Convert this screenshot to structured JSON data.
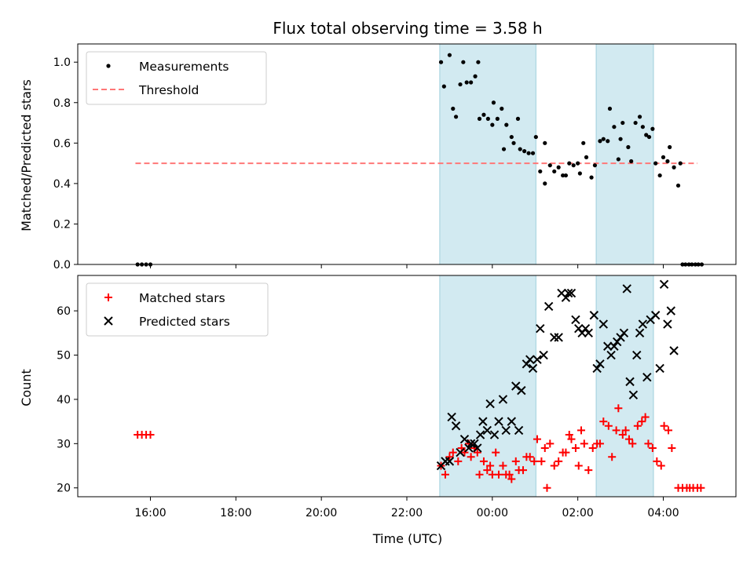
{
  "chart_data": [
    {
      "type": "scatter",
      "title": "Flux total observing time = 3.58 h",
      "xlabel": "",
      "ylabel": "Matched/Predicted stars",
      "x_unit": "hours after 00:00 UTC",
      "xlim": [
        -9.7,
        5.7
      ],
      "ylim": [
        0.0,
        1.09
      ],
      "yticks": [
        "0.0",
        "0.2",
        "0.4",
        "0.6",
        "0.8",
        "1.0"
      ],
      "shaded_intervals": [
        [
          -1.23,
          1.02
        ],
        [
          2.43,
          3.77
        ]
      ],
      "shade_color": "#add8e6",
      "legend": {
        "position": "top-left",
        "entries": [
          "Measurements",
          "Threshold"
        ]
      },
      "threshold": {
        "name": "Threshold",
        "y": 0.5,
        "x_range": [
          -8.35,
          4.8
        ],
        "color": "#ff7777",
        "style": "dashed"
      },
      "series": [
        {
          "name": "Measurements",
          "marker": "dot",
          "color": "#000000",
          "points": [
            [
              -8.3,
              0.0
            ],
            [
              -8.2,
              0.0
            ],
            [
              -8.1,
              0.0
            ],
            [
              -8.0,
              0.0
            ],
            [
              -1.2,
              1.0
            ],
            [
              -1.13,
              0.88
            ],
            [
              -1.0,
              1.035
            ],
            [
              -0.92,
              0.77
            ],
            [
              -0.85,
              0.73
            ],
            [
              -0.75,
              0.89
            ],
            [
              -0.68,
              1.0
            ],
            [
              -0.6,
              0.9
            ],
            [
              -0.5,
              0.9
            ],
            [
              -0.4,
              0.93
            ],
            [
              -0.33,
              1.0
            ],
            [
              -0.3,
              0.72
            ],
            [
              -0.2,
              0.74
            ],
            [
              -0.1,
              0.72
            ],
            [
              0.0,
              0.69
            ],
            [
              0.03,
              0.8
            ],
            [
              0.12,
              0.72
            ],
            [
              0.22,
              0.77
            ],
            [
              0.27,
              0.57
            ],
            [
              0.33,
              0.69
            ],
            [
              0.45,
              0.63
            ],
            [
              0.5,
              0.6
            ],
            [
              0.6,
              0.72
            ],
            [
              0.65,
              0.57
            ],
            [
              0.75,
              0.56
            ],
            [
              0.85,
              0.55
            ],
            [
              0.95,
              0.55
            ],
            [
              1.02,
              0.63
            ],
            [
              1.12,
              0.46
            ],
            [
              1.23,
              0.6
            ],
            [
              1.23,
              0.4
            ],
            [
              1.35,
              0.49
            ],
            [
              1.45,
              0.46
            ],
            [
              1.55,
              0.48
            ],
            [
              1.65,
              0.44
            ],
            [
              1.72,
              0.44
            ],
            [
              1.8,
              0.5
            ],
            [
              1.9,
              0.49
            ],
            [
              2.0,
              0.5
            ],
            [
              2.05,
              0.45
            ],
            [
              2.13,
              0.6
            ],
            [
              2.2,
              0.53
            ],
            [
              2.32,
              0.43
            ],
            [
              2.4,
              0.49
            ],
            [
              2.52,
              0.61
            ],
            [
              2.6,
              0.62
            ],
            [
              2.7,
              0.61
            ],
            [
              2.75,
              0.77
            ],
            [
              2.85,
              0.68
            ],
            [
              2.95,
              0.52
            ],
            [
              3.0,
              0.62
            ],
            [
              3.05,
              0.7
            ],
            [
              3.18,
              0.58
            ],
            [
              3.25,
              0.51
            ],
            [
              3.35,
              0.7
            ],
            [
              3.45,
              0.73
            ],
            [
              3.52,
              0.68
            ],
            [
              3.6,
              0.64
            ],
            [
              3.67,
              0.63
            ],
            [
              3.75,
              0.67
            ],
            [
              3.82,
              0.5
            ],
            [
              3.92,
              0.44
            ],
            [
              4.0,
              0.53
            ],
            [
              4.1,
              0.51
            ],
            [
              4.15,
              0.58
            ],
            [
              4.25,
              0.48
            ],
            [
              4.35,
              0.39
            ],
            [
              4.4,
              0.5
            ],
            [
              4.45,
              0.0
            ],
            [
              4.52,
              0.0
            ],
            [
              4.6,
              0.0
            ],
            [
              4.67,
              0.0
            ],
            [
              4.75,
              0.0
            ],
            [
              4.82,
              0.0
            ],
            [
              4.9,
              0.0
            ]
          ]
        }
      ]
    },
    {
      "type": "scatter",
      "title": "",
      "xlabel": "Time (UTC)",
      "ylabel": "Count",
      "x_unit": "hours after 00:00 UTC",
      "xlim": [
        -9.7,
        5.7
      ],
      "ylim": [
        18,
        68
      ],
      "yticks": [
        "20",
        "30",
        "40",
        "50",
        "60"
      ],
      "xticks": [
        {
          "value": -8,
          "label": "16:00"
        },
        {
          "value": -6,
          "label": "18:00"
        },
        {
          "value": -4,
          "label": "20:00"
        },
        {
          "value": -2,
          "label": "22:00"
        },
        {
          "value": 0,
          "label": "00:00"
        },
        {
          "value": 2,
          "label": "02:00"
        },
        {
          "value": 4,
          "label": "04:00"
        }
      ],
      "shaded_intervals": [
        [
          -1.23,
          1.02
        ],
        [
          2.43,
          3.77
        ]
      ],
      "shade_color": "#add8e6",
      "legend": {
        "position": "top-left",
        "entries": [
          "Matched stars",
          "Predicted stars"
        ]
      },
      "series": [
        {
          "name": "Matched stars",
          "marker": "plus",
          "color": "#ff0000",
          "points": [
            [
              -8.3,
              32
            ],
            [
              -8.2,
              32
            ],
            [
              -8.1,
              32
            ],
            [
              -8.0,
              32
            ],
            [
              -1.2,
              25
            ],
            [
              -1.1,
              23
            ],
            [
              -1.0,
              27
            ],
            [
              -0.92,
              28
            ],
            [
              -0.8,
              26
            ],
            [
              -0.72,
              29
            ],
            [
              -0.65,
              28
            ],
            [
              -0.55,
              30
            ],
            [
              -0.5,
              27
            ],
            [
              -0.42,
              29
            ],
            [
              -0.35,
              28
            ],
            [
              -0.3,
              23
            ],
            [
              -0.2,
              26
            ],
            [
              -0.12,
              24
            ],
            [
              -0.05,
              25
            ],
            [
              0.0,
              23
            ],
            [
              0.08,
              28
            ],
            [
              0.15,
              23
            ],
            [
              0.25,
              25
            ],
            [
              0.32,
              23
            ],
            [
              0.4,
              23
            ],
            [
              0.45,
              22
            ],
            [
              0.55,
              26
            ],
            [
              0.62,
              24
            ],
            [
              0.72,
              24
            ],
            [
              0.8,
              27
            ],
            [
              0.88,
              27
            ],
            [
              0.98,
              26
            ],
            [
              1.05,
              31
            ],
            [
              1.15,
              26
            ],
            [
              1.23,
              29
            ],
            [
              1.28,
              20
            ],
            [
              1.35,
              30
            ],
            [
              1.45,
              25
            ],
            [
              1.55,
              26
            ],
            [
              1.65,
              28
            ],
            [
              1.72,
              28
            ],
            [
              1.8,
              32
            ],
            [
              1.85,
              31
            ],
            [
              1.95,
              29
            ],
            [
              2.02,
              25
            ],
            [
              2.08,
              33
            ],
            [
              2.15,
              30
            ],
            [
              2.25,
              24
            ],
            [
              2.35,
              29
            ],
            [
              2.45,
              30
            ],
            [
              2.52,
              30
            ],
            [
              2.6,
              35
            ],
            [
              2.72,
              34
            ],
            [
              2.8,
              27
            ],
            [
              2.9,
              33
            ],
            [
              2.95,
              38
            ],
            [
              3.05,
              32
            ],
            [
              3.12,
              33
            ],
            [
              3.2,
              31
            ],
            [
              3.28,
              30
            ],
            [
              3.4,
              34
            ],
            [
              3.5,
              35
            ],
            [
              3.58,
              36
            ],
            [
              3.65,
              30
            ],
            [
              3.75,
              29
            ],
            [
              3.85,
              26
            ],
            [
              3.95,
              25
            ],
            [
              4.02,
              34
            ],
            [
              4.12,
              33
            ],
            [
              4.2,
              29
            ],
            [
              4.35,
              20
            ],
            [
              4.45,
              20
            ],
            [
              4.55,
              20
            ],
            [
              4.62,
              20
            ],
            [
              4.7,
              20
            ],
            [
              4.8,
              20
            ],
            [
              4.88,
              20
            ]
          ]
        },
        {
          "name": "Predicted stars",
          "marker": "x",
          "color": "#000000",
          "points": [
            [
              -1.2,
              25
            ],
            [
              -1.1,
              26
            ],
            [
              -1.0,
              26
            ],
            [
              -0.95,
              36
            ],
            [
              -0.85,
              34
            ],
            [
              -0.75,
              28
            ],
            [
              -0.65,
              31
            ],
            [
              -0.55,
              29
            ],
            [
              -0.5,
              30
            ],
            [
              -0.42,
              30
            ],
            [
              -0.35,
              29
            ],
            [
              -0.28,
              32
            ],
            [
              -0.22,
              35
            ],
            [
              -0.12,
              33
            ],
            [
              -0.05,
              39
            ],
            [
              0.05,
              32
            ],
            [
              0.15,
              35
            ],
            [
              0.25,
              40
            ],
            [
              0.32,
              33
            ],
            [
              0.45,
              35
            ],
            [
              0.55,
              43
            ],
            [
              0.62,
              33
            ],
            [
              0.68,
              42
            ],
            [
              0.8,
              48
            ],
            [
              0.88,
              49
            ],
            [
              0.95,
              47
            ],
            [
              1.05,
              49
            ],
            [
              1.12,
              56
            ],
            [
              1.2,
              50
            ],
            [
              1.32,
              61
            ],
            [
              1.45,
              54
            ],
            [
              1.55,
              54
            ],
            [
              1.62,
              64
            ],
            [
              1.72,
              63
            ],
            [
              1.78,
              64
            ],
            [
              1.85,
              64
            ],
            [
              1.95,
              58
            ],
            [
              2.02,
              56
            ],
            [
              2.1,
              55
            ],
            [
              2.18,
              56
            ],
            [
              2.25,
              55
            ],
            [
              2.38,
              59
            ],
            [
              2.45,
              47
            ],
            [
              2.52,
              48
            ],
            [
              2.6,
              57
            ],
            [
              2.7,
              52
            ],
            [
              2.78,
              50
            ],
            [
              2.85,
              52
            ],
            [
              2.92,
              53
            ],
            [
              3.0,
              54
            ],
            [
              3.08,
              55
            ],
            [
              3.15,
              65
            ],
            [
              3.22,
              44
            ],
            [
              3.3,
              41
            ],
            [
              3.38,
              50
            ],
            [
              3.45,
              55
            ],
            [
              3.52,
              57
            ],
            [
              3.62,
              45
            ],
            [
              3.7,
              58
            ],
            [
              3.82,
              59
            ],
            [
              3.92,
              47
            ],
            [
              4.02,
              66
            ],
            [
              4.1,
              57
            ],
            [
              4.18,
              60
            ],
            [
              4.25,
              51
            ]
          ]
        }
      ]
    }
  ]
}
